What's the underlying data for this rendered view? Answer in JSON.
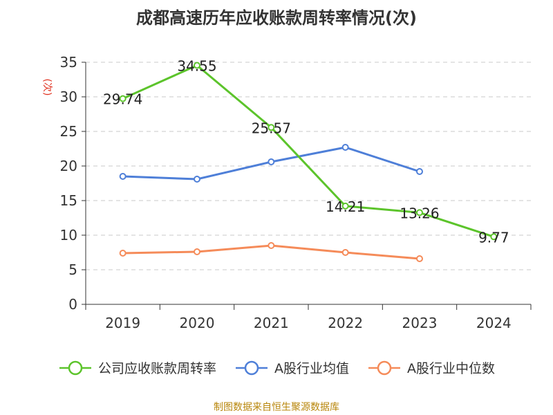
{
  "chart_data": {
    "type": "line",
    "title": "成都高速历年应收账款周转率情况(次)",
    "ylabel": "(次)",
    "xlabel": "",
    "categories": [
      "2019",
      "2020",
      "2021",
      "2022",
      "2023",
      "2024"
    ],
    "ylim": [
      0,
      35
    ],
    "yticks": [
      0,
      5,
      10,
      15,
      20,
      25,
      30,
      35
    ],
    "grid": true,
    "legend_position": "bottom",
    "series": [
      {
        "name": "公司应收账款周转率",
        "color": "#5cc42b",
        "values": [
          29.74,
          34.55,
          25.57,
          14.21,
          13.26,
          9.77
        ],
        "show_labels": true
      },
      {
        "name": "A股行业均值",
        "color": "#4e7fd8",
        "values": [
          18.5,
          18.1,
          20.6,
          22.7,
          19.2,
          null
        ],
        "show_labels": false
      },
      {
        "name": "A股行业中位数",
        "color": "#f58b59",
        "values": [
          7.4,
          7.6,
          8.5,
          7.5,
          6.6,
          null
        ],
        "show_labels": false
      }
    ]
  },
  "source_note": "制图数据来自恒生聚源数据库"
}
